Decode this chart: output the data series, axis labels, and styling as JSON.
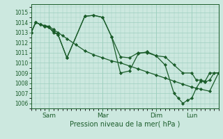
{
  "bg_color": "#cce8df",
  "grid_color": "#9ecfbf",
  "line_color": "#1a5c2a",
  "marker_color": "#1a5c2a",
  "xlabel": "Pression niveau de la mer( hPa )",
  "ylim": [
    1005.5,
    1015.8
  ],
  "yticks": [
    1006,
    1007,
    1008,
    1009,
    1010,
    1011,
    1012,
    1013,
    1014,
    1015
  ],
  "xtick_labels": [
    "Sam",
    "Mar",
    "Dim",
    "Lun"
  ],
  "xtick_positions": [
    24,
    96,
    168,
    216
  ],
  "xlim": [
    0,
    252
  ],
  "series1_x": [
    0,
    6,
    12,
    18,
    24,
    30,
    36,
    42,
    48,
    60,
    72,
    84,
    96,
    108,
    120,
    132,
    144,
    156,
    168,
    180,
    192,
    204,
    216,
    228,
    240,
    252
  ],
  "series1_y": [
    1013.0,
    1014.0,
    1013.8,
    1013.7,
    1013.6,
    1013.3,
    1013.0,
    1012.7,
    1012.4,
    1011.8,
    1011.2,
    1010.8,
    1010.5,
    1010.2,
    1010.0,
    1009.7,
    1009.4,
    1009.1,
    1008.8,
    1008.5,
    1008.2,
    1007.9,
    1007.6,
    1007.4,
    1007.2,
    1009.0
  ],
  "series2_x": [
    0,
    6,
    12,
    18,
    24,
    30,
    36,
    48,
    72,
    84,
    96,
    108,
    120,
    132,
    144,
    156,
    168,
    180,
    192,
    204,
    216,
    222,
    228,
    234,
    240,
    252
  ],
  "series2_y": [
    1013.0,
    1014.0,
    1013.8,
    1013.6,
    1013.5,
    1013.1,
    1012.8,
    1010.5,
    1014.6,
    1014.7,
    1014.5,
    1012.6,
    1010.6,
    1010.5,
    1011.0,
    1011.0,
    1010.7,
    1010.6,
    1009.8,
    1009.0,
    1009.0,
    1008.3,
    1008.3,
    1008.2,
    1009.0,
    1009.0
  ],
  "series3_x": [
    0,
    6,
    12,
    18,
    24,
    30,
    36,
    48,
    72,
    84,
    96,
    108,
    120,
    132,
    144,
    156,
    168,
    180,
    192,
    198,
    204,
    210,
    216,
    222,
    228,
    234,
    240,
    246,
    252
  ],
  "series3_y": [
    1013.0,
    1014.0,
    1013.8,
    1013.6,
    1013.5,
    1013.0,
    1012.8,
    1010.5,
    1014.6,
    1014.7,
    1014.5,
    1012.6,
    1009.0,
    1009.2,
    1010.9,
    1011.1,
    1010.7,
    1009.8,
    1007.0,
    1006.5,
    1006.0,
    1006.3,
    1006.5,
    1007.5,
    1008.2,
    1008.1,
    1008.3,
    1009.0,
    1009.0
  ]
}
